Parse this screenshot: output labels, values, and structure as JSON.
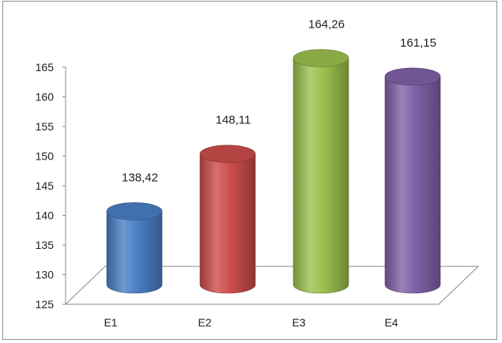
{
  "chart_data": {
    "type": "bar",
    "style": "3d-cylinder",
    "title": "",
    "xlabel": "",
    "ylabel": "",
    "categories": [
      "E1",
      "E2",
      "E3",
      "E4"
    ],
    "values": [
      138.42,
      148.11,
      164.26,
      161.15
    ],
    "data_labels": [
      "138,42",
      "148,11",
      "164,26",
      "161,15"
    ],
    "yticks": [
      "125",
      "130",
      "135",
      "140",
      "145",
      "150",
      "155",
      "160",
      "165"
    ],
    "ylim": [
      125,
      165
    ],
    "grid": false,
    "legend": "none",
    "colors": [
      "#4a7fc6",
      "#cc4d4a",
      "#9bc04d",
      "#8061a8"
    ]
  }
}
